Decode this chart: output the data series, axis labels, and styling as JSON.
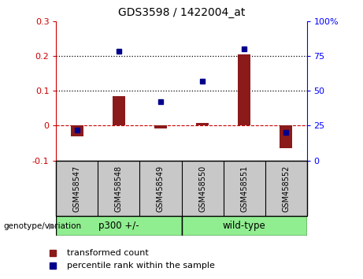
{
  "title": "GDS3598 / 1422004_at",
  "samples": [
    "GSM458547",
    "GSM458548",
    "GSM458549",
    "GSM458550",
    "GSM458551",
    "GSM458552"
  ],
  "bar_values": [
    -0.03,
    0.085,
    -0.008,
    0.008,
    0.205,
    -0.065
  ],
  "dot_values": [
    22,
    78,
    42,
    57,
    80,
    20
  ],
  "bar_color": "#8B1A1A",
  "dot_color": "#00008B",
  "ylim_left": [
    -0.1,
    0.3
  ],
  "ylim_right": [
    0,
    100
  ],
  "yticks_left": [
    -0.1,
    0.0,
    0.1,
    0.2,
    0.3
  ],
  "yticks_right": [
    0,
    25,
    50,
    75,
    100
  ],
  "group1_label": "p300 +/-",
  "group2_label": "wild-type",
  "group1_indices": [
    0,
    1,
    2
  ],
  "group2_indices": [
    3,
    4,
    5
  ],
  "group1_color": "#90EE90",
  "group2_color": "#90EE90",
  "genotype_label": "genotype/variation",
  "legend1": "transformed count",
  "legend2": "percentile rank within the sample",
  "hline_color": "#CC0000",
  "dotted_lines": [
    0.1,
    0.2
  ],
  "background_color": "#ffffff",
  "plot_bg": "#ffffff",
  "tick_label_bg": "#C8C8C8"
}
